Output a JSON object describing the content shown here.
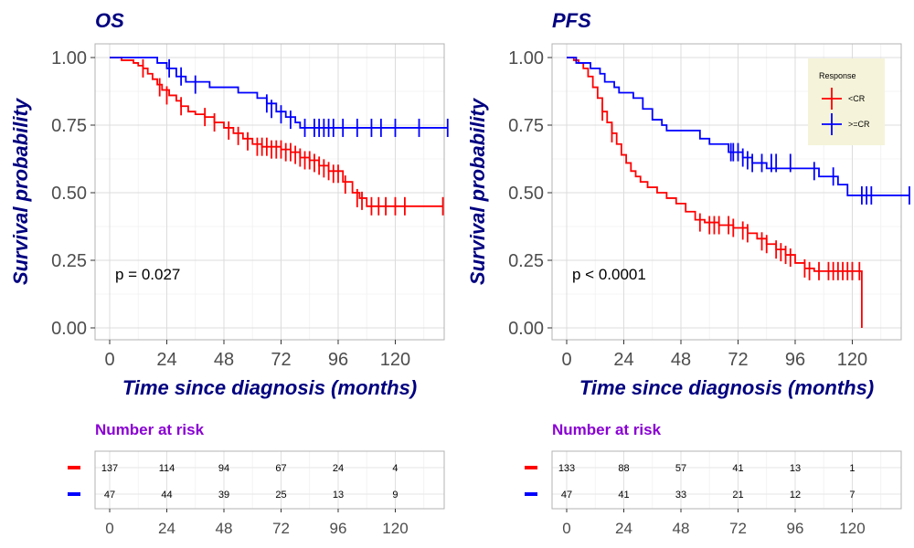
{
  "colors": {
    "less_cr": "#ff0000",
    "ge_cr": "#0000ff",
    "title": "#000080",
    "risk_title": "#8a00d4"
  },
  "chart_data": [
    {
      "type": "line",
      "panel": "OS",
      "title": "OS",
      "xlabel": "Time since diagnosis (months)",
      "ylabel": "Survival probability",
      "xlim": [
        0,
        144
      ],
      "ylim": [
        0,
        1
      ],
      "x_ticks": [
        "0",
        "24",
        "48",
        "72",
        "96",
        "120"
      ],
      "y_ticks": [
        "0.00",
        "0.25",
        "0.50",
        "0.75",
        "1.00"
      ],
      "grid": true,
      "p_value": "p = 0.027",
      "series": [
        {
          "key": "less_cr",
          "steps": [
            [
              0,
              1.0
            ],
            [
              5,
              0.99
            ],
            [
              10,
              0.98
            ],
            [
              12,
              0.97
            ],
            [
              14,
              0.96
            ],
            [
              16,
              0.94
            ],
            [
              18,
              0.92
            ],
            [
              20,
              0.9
            ],
            [
              22,
              0.88
            ],
            [
              25,
              0.86
            ],
            [
              28,
              0.84
            ],
            [
              30,
              0.82
            ],
            [
              33,
              0.8
            ],
            [
              36,
              0.79
            ],
            [
              40,
              0.78
            ],
            [
              44,
              0.76
            ],
            [
              48,
              0.74
            ],
            [
              52,
              0.72
            ],
            [
              56,
              0.7
            ],
            [
              60,
              0.68
            ],
            [
              64,
              0.67
            ],
            [
              72,
              0.66
            ],
            [
              76,
              0.65
            ],
            [
              80,
              0.63
            ],
            [
              84,
              0.62
            ],
            [
              88,
              0.6
            ],
            [
              92,
              0.58
            ],
            [
              98,
              0.54
            ],
            [
              102,
              0.5
            ],
            [
              105,
              0.48
            ],
            [
              108,
              0.45
            ],
            [
              140,
              0.45
            ]
          ],
          "censors": [
            [
              14,
              0.96
            ],
            [
              21,
              0.89
            ],
            [
              24,
              0.86
            ],
            [
              30,
              0.82
            ],
            [
              40,
              0.78
            ],
            [
              44,
              0.76
            ],
            [
              50,
              0.73
            ],
            [
              54,
              0.71
            ],
            [
              58,
              0.69
            ],
            [
              62,
              0.67
            ],
            [
              64,
              0.67
            ],
            [
              66,
              0.67
            ],
            [
              68,
              0.66
            ],
            [
              70,
              0.66
            ],
            [
              72,
              0.66
            ],
            [
              74,
              0.65
            ],
            [
              76,
              0.65
            ],
            [
              78,
              0.64
            ],
            [
              80,
              0.63
            ],
            [
              82,
              0.62
            ],
            [
              84,
              0.62
            ],
            [
              86,
              0.61
            ],
            [
              88,
              0.6
            ],
            [
              90,
              0.59
            ],
            [
              92,
              0.58
            ],
            [
              94,
              0.57
            ],
            [
              96,
              0.57
            ],
            [
              99,
              0.53
            ],
            [
              104,
              0.48
            ],
            [
              106,
              0.47
            ],
            [
              110,
              0.45
            ],
            [
              113,
              0.45
            ],
            [
              116,
              0.45
            ],
            [
              120,
              0.45
            ],
            [
              124,
              0.45
            ],
            [
              140,
              0.45
            ]
          ]
        },
        {
          "key": "ge_cr",
          "steps": [
            [
              0,
              1.0
            ],
            [
              20,
              0.98
            ],
            [
              24,
              0.96
            ],
            [
              28,
              0.93
            ],
            [
              32,
              0.91
            ],
            [
              42,
              0.89
            ],
            [
              54,
              0.87
            ],
            [
              62,
              0.85
            ],
            [
              66,
              0.83
            ],
            [
              70,
              0.8
            ],
            [
              74,
              0.78
            ],
            [
              78,
              0.76
            ],
            [
              80,
              0.74
            ],
            [
              142,
              0.74
            ]
          ],
          "censors": [
            [
              25,
              0.96
            ],
            [
              30,
              0.93
            ],
            [
              36,
              0.9
            ],
            [
              66,
              0.83
            ],
            [
              68,
              0.81
            ],
            [
              72,
              0.79
            ],
            [
              76,
              0.77
            ],
            [
              82,
              0.74
            ],
            [
              86,
              0.74
            ],
            [
              88,
              0.74
            ],
            [
              90,
              0.74
            ],
            [
              92,
              0.74
            ],
            [
              94,
              0.74
            ],
            [
              98,
              0.74
            ],
            [
              104,
              0.74
            ],
            [
              110,
              0.74
            ],
            [
              114,
              0.74
            ],
            [
              120,
              0.74
            ],
            [
              130,
              0.74
            ],
            [
              142,
              0.74
            ]
          ]
        }
      ],
      "risk_table": {
        "title": "Number at risk",
        "x_ticks": [
          "0",
          "24",
          "48",
          "72",
          "96",
          "120"
        ],
        "rows": [
          {
            "key": "less_cr",
            "values": [
              "137",
              "114",
              "94",
              "67",
              "24",
              "4"
            ]
          },
          {
            "key": "ge_cr",
            "values": [
              "47",
              "44",
              "39",
              "25",
              "13",
              "9"
            ]
          }
        ]
      }
    },
    {
      "type": "line",
      "panel": "PFS",
      "title": "PFS",
      "xlabel": "Time since diagnosis (months)",
      "ylabel": "Survival probability",
      "xlim": [
        0,
        144
      ],
      "ylim": [
        0,
        1
      ],
      "x_ticks": [
        "0",
        "24",
        "48",
        "72",
        "96",
        "120"
      ],
      "y_ticks": [
        "0.00",
        "0.25",
        "0.50",
        "0.75",
        "1.00"
      ],
      "grid": true,
      "p_value": "p < 0.0001",
      "legend": {
        "title": "Response",
        "position": "top-right",
        "entries": [
          {
            "key": "less_cr",
            "label": "<CR"
          },
          {
            "key": "ge_cr",
            "label": ">=CR"
          }
        ]
      },
      "series": [
        {
          "key": "less_cr",
          "steps": [
            [
              0,
              1.0
            ],
            [
              3,
              0.99
            ],
            [
              5,
              0.98
            ],
            [
              7,
              0.96
            ],
            [
              9,
              0.93
            ],
            [
              11,
              0.89
            ],
            [
              13,
              0.85
            ],
            [
              15,
              0.8
            ],
            [
              17,
              0.76
            ],
            [
              19,
              0.72
            ],
            [
              21,
              0.68
            ],
            [
              23,
              0.64
            ],
            [
              25,
              0.61
            ],
            [
              27,
              0.58
            ],
            [
              29,
              0.56
            ],
            [
              31,
              0.54
            ],
            [
              34,
              0.52
            ],
            [
              38,
              0.5
            ],
            [
              42,
              0.48
            ],
            [
              46,
              0.46
            ],
            [
              50,
              0.43
            ],
            [
              54,
              0.4
            ],
            [
              58,
              0.39
            ],
            [
              64,
              0.38
            ],
            [
              70,
              0.37
            ],
            [
              76,
              0.35
            ],
            [
              80,
              0.33
            ],
            [
              84,
              0.31
            ],
            [
              88,
              0.29
            ],
            [
              92,
              0.27
            ],
            [
              96,
              0.24
            ],
            [
              100,
              0.22
            ],
            [
              104,
              0.21
            ],
            [
              124,
              0.21
            ],
            [
              124,
              0.0
            ]
          ],
          "censors": [
            [
              15,
              0.8
            ],
            [
              19,
              0.72
            ],
            [
              56,
              0.39
            ],
            [
              60,
              0.38
            ],
            [
              62,
              0.38
            ],
            [
              64,
              0.38
            ],
            [
              68,
              0.38
            ],
            [
              70,
              0.37
            ],
            [
              74,
              0.36
            ],
            [
              76,
              0.35
            ],
            [
              82,
              0.32
            ],
            [
              84,
              0.31
            ],
            [
              88,
              0.29
            ],
            [
              90,
              0.28
            ],
            [
              92,
              0.27
            ],
            [
              94,
              0.26
            ],
            [
              100,
              0.22
            ],
            [
              102,
              0.21
            ],
            [
              106,
              0.21
            ],
            [
              110,
              0.21
            ],
            [
              112,
              0.21
            ],
            [
              114,
              0.21
            ],
            [
              116,
              0.21
            ],
            [
              118,
              0.21
            ],
            [
              120,
              0.21
            ],
            [
              123,
              0.21
            ]
          ]
        },
        {
          "key": "ge_cr",
          "steps": [
            [
              0,
              1.0
            ],
            [
              4,
              0.98
            ],
            [
              10,
              0.96
            ],
            [
              14,
              0.94
            ],
            [
              16,
              0.91
            ],
            [
              20,
              0.89
            ],
            [
              22,
              0.87
            ],
            [
              28,
              0.85
            ],
            [
              32,
              0.81
            ],
            [
              36,
              0.77
            ],
            [
              40,
              0.75
            ],
            [
              42,
              0.73
            ],
            [
              56,
              0.7
            ],
            [
              60,
              0.68
            ],
            [
              68,
              0.65
            ],
            [
              74,
              0.63
            ],
            [
              78,
              0.61
            ],
            [
              84,
              0.59
            ],
            [
              106,
              0.56
            ],
            [
              114,
              0.53
            ],
            [
              118,
              0.49
            ],
            [
              144,
              0.49
            ]
          ],
          "censors": [
            [
              69,
              0.65
            ],
            [
              70,
              0.65
            ],
            [
              72,
              0.65
            ],
            [
              74,
              0.63
            ],
            [
              76,
              0.62
            ],
            [
              78,
              0.61
            ],
            [
              82,
              0.61
            ],
            [
              86,
              0.61
            ],
            [
              88,
              0.61
            ],
            [
              94,
              0.61
            ],
            [
              104,
              0.58
            ],
            [
              112,
              0.56
            ],
            [
              124,
              0.49
            ],
            [
              126,
              0.49
            ],
            [
              128,
              0.49
            ],
            [
              144,
              0.49
            ]
          ]
        }
      ],
      "risk_table": {
        "title": "Number at risk",
        "x_ticks": [
          "0",
          "24",
          "48",
          "72",
          "96",
          "120"
        ],
        "rows": [
          {
            "key": "less_cr",
            "values": [
              "133",
              "88",
              "57",
              "41",
              "13",
              "1"
            ]
          },
          {
            "key": "ge_cr",
            "values": [
              "47",
              "41",
              "33",
              "21",
              "12",
              "7"
            ]
          }
        ]
      }
    }
  ]
}
